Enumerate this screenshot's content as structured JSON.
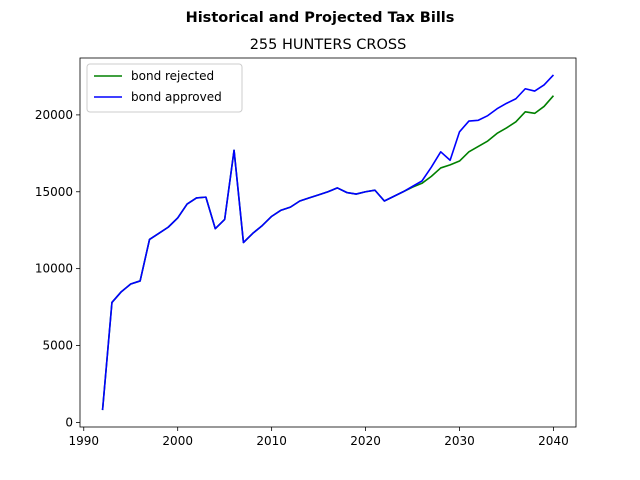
{
  "chart_data": {
    "type": "line",
    "title": "Historical and Projected Tax Bills",
    "subtitle": "255 HUNTERS CROSS",
    "xlabel": "",
    "ylabel": "",
    "xlim": [
      1989.6,
      2042.4
    ],
    "ylim": [
      -300,
      23700
    ],
    "xticks": [
      1990,
      2000,
      2010,
      2020,
      2030,
      2040
    ],
    "yticks": [
      0,
      5000,
      10000,
      15000,
      20000
    ],
    "grid": false,
    "legend": "upper-left",
    "series": [
      {
        "name": "bond rejected",
        "color": "#008000",
        "x": [
          1992,
          1993,
          1994,
          1995,
          1996,
          1997,
          1998,
          1999,
          2000,
          2001,
          2002,
          2003,
          2004,
          2005,
          2006,
          2007,
          2008,
          2009,
          2010,
          2011,
          2012,
          2013,
          2014,
          2015,
          2016,
          2017,
          2018,
          2019,
          2020,
          2021,
          2022,
          2023,
          2024,
          2025,
          2026,
          2027,
          2028,
          2029,
          2030,
          2031,
          2032,
          2033,
          2034,
          2035,
          2036,
          2037,
          2038,
          2039,
          2040
        ],
        "values": [
          800,
          7800,
          8500,
          9000,
          9200,
          11900,
          12300,
          12700,
          13300,
          14200,
          14600,
          14650,
          12600,
          13200,
          17700,
          11700,
          12300,
          12800,
          13400,
          13800,
          14000,
          14400,
          14600,
          14800,
          15000,
          15250,
          14950,
          14850,
          15000,
          15100,
          14400,
          14700,
          15000,
          15300,
          15550,
          16000,
          16550,
          16750,
          17000,
          17600,
          17950,
          18300,
          18800,
          19150,
          19550,
          20200,
          20100,
          20550,
          21250
        ]
      },
      {
        "name": "bond approved",
        "color": "#0000ff",
        "x": [
          1992,
          1993,
          1994,
          1995,
          1996,
          1997,
          1998,
          1999,
          2000,
          2001,
          2002,
          2003,
          2004,
          2005,
          2006,
          2007,
          2008,
          2009,
          2010,
          2011,
          2012,
          2013,
          2014,
          2015,
          2016,
          2017,
          2018,
          2019,
          2020,
          2021,
          2022,
          2023,
          2024,
          2025,
          2026,
          2027,
          2028,
          2029,
          2030,
          2031,
          2032,
          2033,
          2034,
          2035,
          2036,
          2037,
          2038,
          2039,
          2040
        ],
        "values": [
          800,
          7800,
          8500,
          9000,
          9200,
          11900,
          12300,
          12700,
          13300,
          14200,
          14600,
          14650,
          12600,
          13200,
          17700,
          11700,
          12300,
          12800,
          13400,
          13800,
          14000,
          14400,
          14600,
          14800,
          15000,
          15250,
          14950,
          14850,
          15000,
          15100,
          14400,
          14700,
          15000,
          15350,
          15700,
          16600,
          17600,
          17050,
          18900,
          19600,
          19650,
          19950,
          20400,
          20750,
          21050,
          21700,
          21550,
          21950,
          22600
        ]
      }
    ]
  }
}
